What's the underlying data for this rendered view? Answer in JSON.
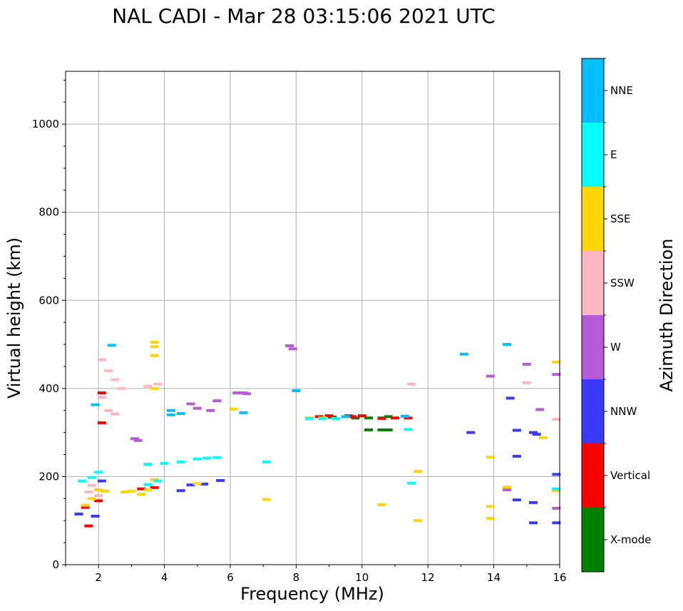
{
  "chart_data": {
    "type": "scatter",
    "title": "NAL CADI - Mar 28 03:15:06 2021 UTC",
    "xlabel": "Frequency (MHz)",
    "ylabel": "Virtual height (km)",
    "xlim": [
      1,
      16
    ],
    "ylim": [
      0,
      1120
    ],
    "xticks": [
      2,
      4,
      6,
      8,
      10,
      12,
      14,
      16
    ],
    "yticks": [
      0,
      200,
      400,
      600,
      800,
      1000
    ],
    "grid": true,
    "colorbar": {
      "label": "Azimuth Direction",
      "categories": [
        {
          "name": "X-mode",
          "color": "#008000"
        },
        {
          "name": "Vertical",
          "color": "#ff0000"
        },
        {
          "name": "NNW",
          "color": "#3a3aff"
        },
        {
          "name": "W",
          "color": "#b55bd6"
        },
        {
          "name": "SSW",
          "color": "#ffb6c1"
        },
        {
          "name": "SSE",
          "color": "#ffd700"
        },
        {
          "name": "E",
          "color": "#00ffff"
        },
        {
          "name": "NNE",
          "color": "#00bfff"
        }
      ]
    },
    "series": [
      {
        "name": "X-mode",
        "points": [
          [
            9.8,
            333
          ],
          [
            10.2,
            333
          ],
          [
            10.6,
            333
          ],
          [
            10.8,
            336
          ],
          [
            9.1,
            335
          ],
          [
            10.2,
            306
          ],
          [
            10.6,
            306
          ],
          [
            10.8,
            306
          ],
          [
            9.6,
            338
          ]
        ]
      },
      {
        "name": "Vertical",
        "points": [
          [
            1.6,
            130
          ],
          [
            1.7,
            88
          ],
          [
            2.0,
            145
          ],
          [
            2.1,
            322
          ],
          [
            2.1,
            390
          ],
          [
            3.3,
            172
          ],
          [
            3.7,
            175
          ],
          [
            8.7,
            336
          ],
          [
            9.0,
            338
          ],
          [
            9.7,
            336
          ],
          [
            10.0,
            338
          ],
          [
            10.6,
            332
          ],
          [
            11.0,
            333
          ],
          [
            11.4,
            333
          ],
          [
            14.4,
            172
          ]
        ]
      },
      {
        "name": "NNW",
        "points": [
          [
            1.4,
            115
          ],
          [
            1.9,
            110
          ],
          [
            2.1,
            190
          ],
          [
            4.5,
            168
          ],
          [
            4.8,
            181
          ],
          [
            5.2,
            183
          ],
          [
            5.7,
            191
          ],
          [
            13.3,
            300
          ],
          [
            14.7,
            305
          ],
          [
            15.2,
            300
          ],
          [
            15.3,
            296
          ],
          [
            15.9,
            205
          ],
          [
            14.7,
            246
          ],
          [
            15.2,
            95
          ],
          [
            15.9,
            95
          ],
          [
            15.2,
            141
          ],
          [
            14.7,
            147
          ],
          [
            14.5,
            378
          ]
        ]
      },
      {
        "name": "W",
        "points": [
          [
            3.1,
            286
          ],
          [
            3.2,
            282
          ],
          [
            4.8,
            365
          ],
          [
            5.0,
            355
          ],
          [
            5.4,
            350
          ],
          [
            5.6,
            372
          ],
          [
            6.2,
            390
          ],
          [
            6.4,
            390
          ],
          [
            6.5,
            388
          ],
          [
            7.8,
            497
          ],
          [
            7.9,
            490
          ],
          [
            15.0,
            455
          ],
          [
            15.4,
            352
          ],
          [
            15.9,
            432
          ],
          [
            15.9,
            128
          ],
          [
            13.9,
            428
          ],
          [
            14.4,
            170
          ]
        ]
      },
      {
        "name": "SSW",
        "points": [
          [
            2.1,
            465
          ],
          [
            2.3,
            440
          ],
          [
            2.5,
            420
          ],
          [
            2.7,
            400
          ],
          [
            2.3,
            350
          ],
          [
            2.5,
            342
          ],
          [
            2.1,
            380
          ],
          [
            1.7,
            165
          ],
          [
            1.8,
            180
          ],
          [
            2.0,
            157
          ],
          [
            3.5,
            405
          ],
          [
            3.8,
            410
          ],
          [
            11.5,
            410
          ],
          [
            15.0,
            413
          ],
          [
            15.9,
            330
          ]
        ]
      },
      {
        "name": "SSE",
        "points": [
          [
            1.6,
            135
          ],
          [
            1.8,
            150
          ],
          [
            2.0,
            170
          ],
          [
            2.2,
            167
          ],
          [
            2.8,
            165
          ],
          [
            3.0,
            167
          ],
          [
            3.3,
            160
          ],
          [
            3.5,
            170
          ],
          [
            3.7,
            193
          ],
          [
            3.7,
            400
          ],
          [
            3.7,
            495
          ],
          [
            3.7,
            505
          ],
          [
            3.7,
            475
          ],
          [
            5.0,
            184
          ],
          [
            6.1,
            353
          ],
          [
            7.1,
            148
          ],
          [
            8.4,
            333
          ],
          [
            8.8,
            333
          ],
          [
            13.9,
            105
          ],
          [
            13.9,
            132
          ],
          [
            13.9,
            244
          ],
          [
            14.4,
            176
          ],
          [
            15.5,
            288
          ],
          [
            15.9,
            460
          ],
          [
            15.9,
            168
          ],
          [
            11.7,
            100
          ],
          [
            11.7,
            212
          ],
          [
            10.6,
            136
          ]
        ]
      },
      {
        "name": "E",
        "points": [
          [
            1.5,
            190
          ],
          [
            1.8,
            198
          ],
          [
            2.0,
            210
          ],
          [
            3.5,
            182
          ],
          [
            3.8,
            190
          ],
          [
            3.5,
            228
          ],
          [
            4.0,
            230
          ],
          [
            4.5,
            233
          ],
          [
            5.0,
            240
          ],
          [
            5.3,
            242
          ],
          [
            5.6,
            243
          ],
          [
            8.4,
            332
          ],
          [
            8.8,
            332
          ],
          [
            9.2,
            332
          ],
          [
            11.4,
            307
          ],
          [
            11.5,
            185
          ],
          [
            15.9,
            172
          ],
          [
            7.1,
            233
          ]
        ]
      },
      {
        "name": "NNE",
        "points": [
          [
            4.2,
            350
          ],
          [
            4.2,
            340
          ],
          [
            4.5,
            343
          ],
          [
            6.4,
            345
          ],
          [
            9.5,
            336
          ],
          [
            11.3,
            337
          ],
          [
            13.1,
            478
          ],
          [
            14.4,
            500
          ],
          [
            8.0,
            395
          ],
          [
            2.4,
            498
          ],
          [
            1.9,
            363
          ]
        ]
      }
    ]
  }
}
